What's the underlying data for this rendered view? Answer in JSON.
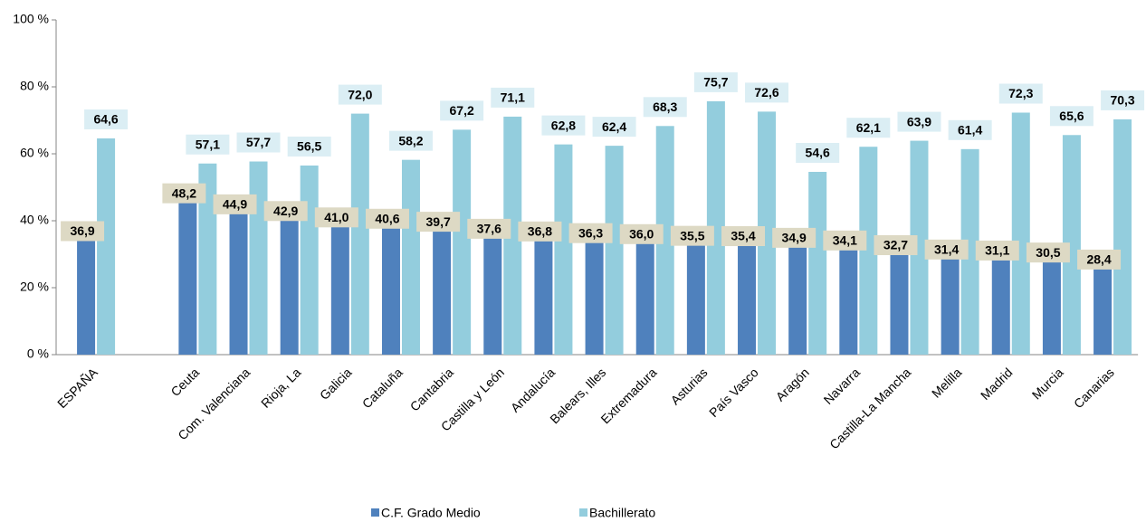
{
  "chart_data": {
    "type": "bar",
    "categories": [
      "ESPAÑA",
      null,
      "Ceuta",
      "Com. Valenciana",
      "Rioja, La",
      "Galicia",
      "Cataluña",
      "Cantabria",
      "Castilla y León",
      "Andalucía",
      "Balears, Illes",
      "Extremadura",
      "Asturias",
      "País Vasco",
      "Aragón",
      "Navarra",
      "Castilla-La Mancha",
      "Melilla",
      "Madrid",
      "Murcia",
      "Canarias"
    ],
    "series": [
      {
        "name": "C.F. Grado Medio",
        "color": "#4f81bd",
        "values": [
          36.9,
          null,
          48.2,
          44.9,
          42.9,
          41.0,
          40.6,
          39.7,
          37.6,
          36.8,
          36.3,
          36.0,
          35.5,
          35.4,
          34.9,
          34.1,
          32.7,
          31.4,
          31.1,
          30.5,
          28.4
        ],
        "value_labels": [
          "36,9",
          null,
          "48,2",
          "44,9",
          "42,9",
          "41,0",
          "40,6",
          "39,7",
          "37,6",
          "36,8",
          "36,3",
          "36,0",
          "35,5",
          "35,4",
          "34,9",
          "34,1",
          "32,7",
          "31,4",
          "31,1",
          "30,5",
          "28,4"
        ]
      },
      {
        "name": "Bachillerato",
        "color": "#93cddd",
        "values": [
          64.6,
          null,
          57.1,
          57.7,
          56.5,
          72.0,
          58.2,
          67.2,
          71.1,
          62.8,
          62.4,
          68.3,
          75.7,
          72.6,
          54.6,
          62.1,
          63.9,
          61.4,
          72.3,
          65.6,
          70.3
        ],
        "value_labels": [
          "64,6",
          null,
          "57,1",
          "57,7",
          "56,5",
          "72,0",
          "58,2",
          "67,2",
          "71,1",
          "62,8",
          "62,4",
          "68,3",
          "75,7",
          "72,6",
          "54,6",
          "62,1",
          "63,9",
          "61,4",
          "72,3",
          "65,6",
          "70,3"
        ]
      }
    ],
    "ylim": [
      0,
      100
    ],
    "yticks": [
      {
        "value": 0,
        "label": "0 %"
      },
      {
        "value": 20,
        "label": "20 %"
      },
      {
        "value": 40,
        "label": "40 %"
      },
      {
        "value": 60,
        "label": "60 %"
      },
      {
        "value": 80,
        "label": "80 %"
      },
      {
        "value": 100,
        "label": "100 %"
      }
    ],
    "grid": false,
    "legend": "bottom"
  }
}
